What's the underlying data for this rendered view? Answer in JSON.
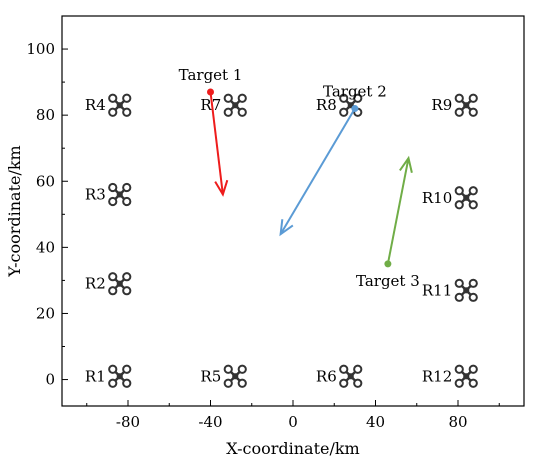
{
  "chart_data": {
    "type": "scatter",
    "xlabel": "X-coordinate/km",
    "ylabel": "Y-coordinate/km",
    "xlim": [
      -112,
      112
    ],
    "ylim": [
      -8,
      110
    ],
    "x_ticks": [
      -80,
      -40,
      0,
      40,
      80
    ],
    "y_ticks": [
      0,
      20,
      40,
      60,
      80,
      100
    ],
    "grid": false,
    "uavs": [
      {
        "label": "R1",
        "x": -84,
        "y": 1
      },
      {
        "label": "R2",
        "x": -84,
        "y": 29
      },
      {
        "label": "R3",
        "x": -84,
        "y": 56
      },
      {
        "label": "R4",
        "x": -84,
        "y": 83
      },
      {
        "label": "R5",
        "x": -28,
        "y": 1
      },
      {
        "label": "R6",
        "x": 28,
        "y": 1
      },
      {
        "label": "R7",
        "x": -28,
        "y": 83
      },
      {
        "label": "R8",
        "x": 28,
        "y": 83
      },
      {
        "label": "R9",
        "x": 84,
        "y": 83
      },
      {
        "label": "R10",
        "x": 84,
        "y": 55
      },
      {
        "label": "R11",
        "x": 84,
        "y": 27
      },
      {
        "label": "R12",
        "x": 84,
        "y": 1
      }
    ],
    "targets": [
      {
        "name": "Target 1",
        "color": "#ee1c1c",
        "start": [
          -40,
          87
        ],
        "end": [
          -34,
          56
        ]
      },
      {
        "name": "Target 2",
        "color": "#5b9bd5",
        "start": [
          30,
          82
        ],
        "end": [
          -6,
          44
        ]
      },
      {
        "name": "Target 3",
        "color": "#70ad47",
        "start": [
          46,
          35
        ],
        "end": [
          56,
          67
        ]
      }
    ]
  }
}
